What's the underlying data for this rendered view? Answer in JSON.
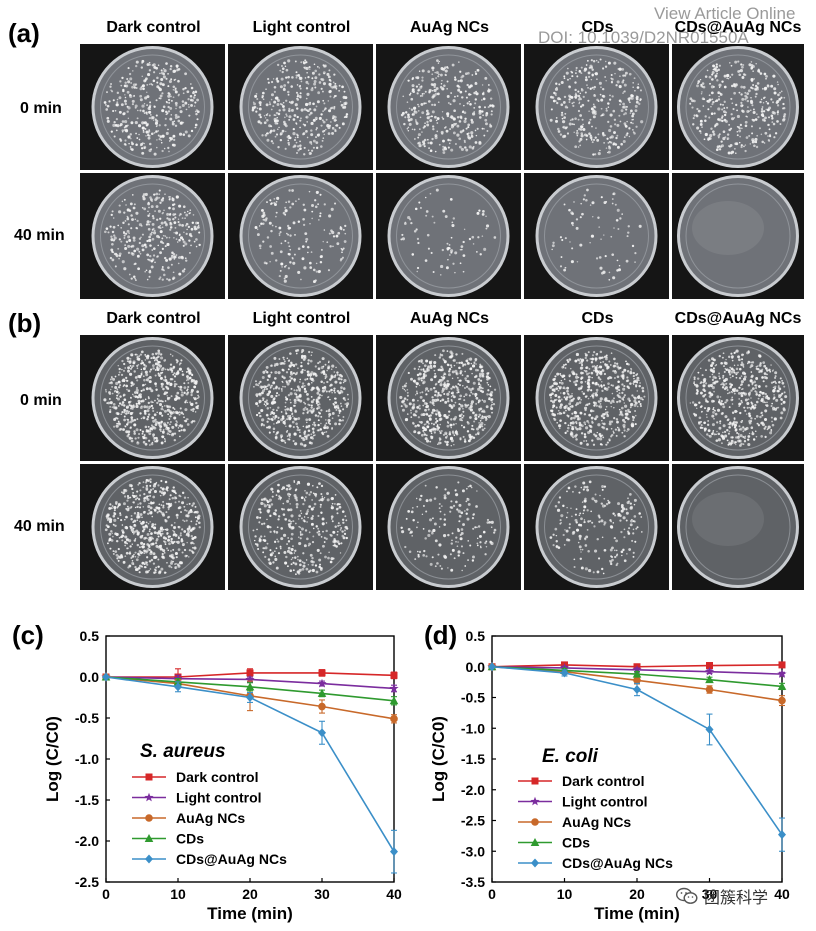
{
  "watermark": {
    "line1": "View Article Online",
    "line2": "DOI: 10.1039/D2NR01550A"
  },
  "social_badge": {
    "icon": "wechat-icon",
    "text": "团簇科学"
  },
  "photo_panels": [
    {
      "label": "(a)",
      "columns": [
        "Dark control",
        "Light control",
        "AuAg NCs",
        "CDs",
        "CDs@AuAg NCs"
      ],
      "rows": [
        "0 min",
        "40 min"
      ],
      "colony_level": [
        [
          0.55,
          0.55,
          0.5,
          0.5,
          0.55
        ],
        [
          0.5,
          0.25,
          0.12,
          0.12,
          0.0
        ]
      ],
      "plate_tone": "#6f7278"
    },
    {
      "label": "(b)",
      "columns": [
        "Dark control",
        "Light control",
        "AuAg NCs",
        "CDs",
        "CDs@AuAg NCs"
      ],
      "rows": [
        "0 min",
        "40 min"
      ],
      "colony_level": [
        [
          0.9,
          0.85,
          0.85,
          0.85,
          0.8
        ],
        [
          0.85,
          0.55,
          0.25,
          0.3,
          0.0
        ]
      ],
      "plate_tone": "#5f6266"
    }
  ],
  "chart_data": [
    {
      "label": "(c)",
      "type": "line",
      "annotation": "S. aureus",
      "xlabel": "Time (min)",
      "ylabel": "Log (C/C0)",
      "xlim": [
        0,
        40
      ],
      "ylim": [
        -2.5,
        0.5
      ],
      "xticks": [
        "0",
        "10",
        "20",
        "30",
        "40"
      ],
      "yticks": [
        "0.5",
        "0.0",
        "-0.5",
        "-1.0",
        "-1.5",
        "-2.0",
        "-2.5"
      ],
      "x": [
        0,
        10,
        20,
        30,
        40
      ],
      "legend_position": "bottom-left",
      "series": [
        {
          "name": "Dark control",
          "color": "#d62728",
          "marker": "square",
          "values": [
            0,
            0.0,
            0.05,
            0.05,
            0.02
          ],
          "errors": [
            0,
            0.1,
            0.05,
            0.04,
            0.04
          ]
        },
        {
          "name": "Light control",
          "color": "#7b2d9e",
          "marker": "star",
          "values": [
            0,
            -0.02,
            -0.03,
            -0.08,
            -0.14
          ],
          "errors": [
            0,
            0.04,
            0.03,
            0.03,
            0.04
          ]
        },
        {
          "name": "AuAg NCs",
          "color": "#c8692a",
          "marker": "circle",
          "values": [
            0,
            -0.08,
            -0.23,
            -0.36,
            -0.51
          ],
          "errors": [
            0,
            0.05,
            0.18,
            0.08,
            0.05
          ]
        },
        {
          "name": "CDs",
          "color": "#2f9a2f",
          "marker": "triangle",
          "values": [
            0,
            -0.06,
            -0.12,
            -0.2,
            -0.29
          ],
          "errors": [
            0,
            0.04,
            0.05,
            0.04,
            0.05
          ]
        },
        {
          "name": "CDs@AuAg NCs",
          "color": "#3b8fc8",
          "marker": "diamond",
          "values": [
            0,
            -0.12,
            -0.25,
            -0.68,
            -2.13
          ],
          "errors": [
            0,
            0.06,
            0.06,
            0.14,
            0.26
          ]
        }
      ]
    },
    {
      "label": "(d)",
      "type": "line",
      "annotation": "E. coli",
      "xlabel": "Time (min)",
      "ylabel": "Log (C/C0)",
      "xlim": [
        0,
        40
      ],
      "ylim": [
        -3.5,
        0.5
      ],
      "xticks": [
        "0",
        "10",
        "20",
        "30",
        "40"
      ],
      "yticks": [
        "0.5",
        "0.0",
        "-0.5",
        "-1.0",
        "-1.5",
        "-2.0",
        "-2.5",
        "-3.0",
        "-3.5"
      ],
      "x": [
        0,
        10,
        20,
        30,
        40
      ],
      "legend_position": "bottom-left",
      "series": [
        {
          "name": "Dark control",
          "color": "#d62728",
          "marker": "square",
          "values": [
            0,
            0.03,
            0.0,
            0.02,
            0.03
          ],
          "errors": [
            0,
            0.03,
            0.03,
            0.03,
            0.03
          ]
        },
        {
          "name": "Light control",
          "color": "#7b2d9e",
          "marker": "star",
          "values": [
            0,
            -0.02,
            -0.05,
            -0.08,
            -0.12
          ],
          "errors": [
            0,
            0.03,
            0.03,
            0.03,
            0.03
          ]
        },
        {
          "name": "AuAg NCs",
          "color": "#c8692a",
          "marker": "circle",
          "values": [
            0,
            -0.08,
            -0.22,
            -0.37,
            -0.55
          ],
          "errors": [
            0,
            0.04,
            0.06,
            0.06,
            0.08
          ]
        },
        {
          "name": "CDs",
          "color": "#2f9a2f",
          "marker": "triangle",
          "values": [
            0,
            -0.06,
            -0.12,
            -0.21,
            -0.32
          ],
          "errors": [
            0,
            0.03,
            0.04,
            0.04,
            0.05
          ]
        },
        {
          "name": "CDs@AuAg NCs",
          "color": "#3b8fc8",
          "marker": "diamond",
          "values": [
            0,
            -0.1,
            -0.37,
            -1.02,
            -2.73
          ],
          "errors": [
            0,
            0.05,
            0.1,
            0.25,
            0.27
          ]
        }
      ]
    }
  ]
}
